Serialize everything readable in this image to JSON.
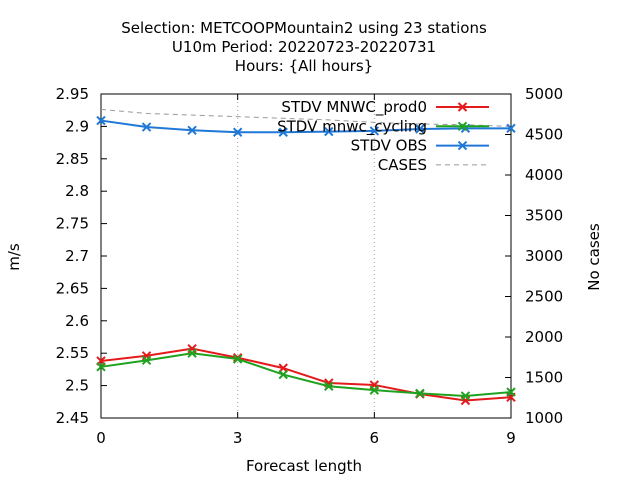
{
  "chart_data": {
    "type": "line",
    "title_lines": [
      "Selection: METCOOPMountain2 using    23 stations",
      "U10m   Period: 20220723-20220731",
      "Hours: {All hours}"
    ],
    "xlabel": "Forecast length",
    "ylabel": "m/s",
    "y2label": "No cases",
    "xlim": [
      0,
      9
    ],
    "ylim": [
      2.45,
      2.95
    ],
    "y2lim": [
      1000,
      5000
    ],
    "xticks": [
      0,
      3,
      6,
      9
    ],
    "yticks": [
      "2.45",
      "2.5",
      "2.55",
      "2.6",
      "2.65",
      "2.7",
      "2.75",
      "2.8",
      "2.85",
      "2.9",
      "2.95"
    ],
    "y2ticks": [
      "1000",
      "1500",
      "2000",
      "2500",
      "3000",
      "3500",
      "4000",
      "4500",
      "5000"
    ],
    "grid": true,
    "legend_position": "top-right",
    "x": [
      0,
      1,
      2,
      3,
      4,
      5,
      6,
      7,
      8,
      9
    ],
    "series": [
      {
        "name": "STDV MNWC_prod0",
        "color": "#e41a1c",
        "marker": "x",
        "axis": "y",
        "values": [
          2.538,
          2.546,
          2.557,
          2.543,
          2.527,
          2.504,
          2.501,
          2.487,
          2.477,
          2.482
        ]
      },
      {
        "name": "STDV mnwc_cycling",
        "color": "#1fa21f",
        "marker": "x",
        "axis": "y",
        "values": [
          2.529,
          2.539,
          2.55,
          2.541,
          2.517,
          2.499,
          2.493,
          2.488,
          2.484,
          2.49
        ]
      },
      {
        "name": "STDV OBS",
        "color": "#1f78d8",
        "marker": "x",
        "axis": "y",
        "values": [
          2.909,
          2.899,
          2.894,
          2.891,
          2.891,
          2.892,
          2.893,
          2.896,
          2.897,
          2.897
        ]
      },
      {
        "name": "CASES",
        "color": "#999999",
        "dashed": true,
        "axis": "y2",
        "values": [
          4810,
          4760,
          4740,
          4720,
          4700,
          4680,
          4650,
          4630,
          4620,
          4600
        ]
      }
    ]
  }
}
